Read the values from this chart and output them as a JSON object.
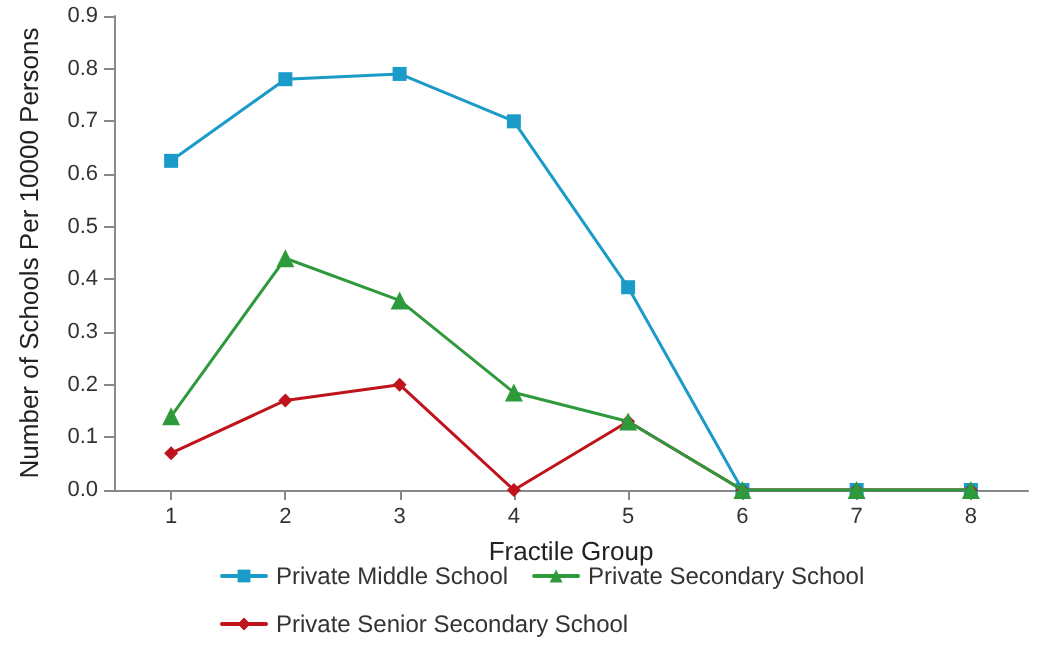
{
  "chart_data": {
    "type": "line",
    "xlabel": "Fractile Group",
    "ylabel": "Number of Schools Per 10000 Persons",
    "categories": [
      "1",
      "2",
      "3",
      "4",
      "5",
      "6",
      "7",
      "8"
    ],
    "ylim": [
      0,
      0.9
    ],
    "yticks": [
      {
        "value": 0,
        "label": "0.0"
      },
      0.1,
      0.2,
      0.3,
      0.4,
      0.5,
      0.6,
      0.7,
      0.8,
      0.9
    ],
    "grid": false,
    "legend": "bottom",
    "line_style": "solid",
    "series": [
      {
        "name": "Private Middle School",
        "color": "#1a9bc8",
        "marker": "square",
        "values": [
          0.625,
          0.78,
          0.79,
          0.7,
          0.385,
          0,
          0,
          0
        ]
      },
      {
        "name": "Private Secondary School",
        "color": "#2e9a3c",
        "marker": "triangle",
        "values": [
          0.14,
          0.44,
          0.36,
          0.185,
          0.13,
          0,
          0,
          0
        ]
      },
      {
        "name": "Private Senior Secondary School",
        "color": "#c0141c",
        "marker": "diamond",
        "values": [
          0.07,
          0.17,
          0.2,
          0,
          0.13,
          0,
          0,
          0
        ]
      }
    ]
  }
}
